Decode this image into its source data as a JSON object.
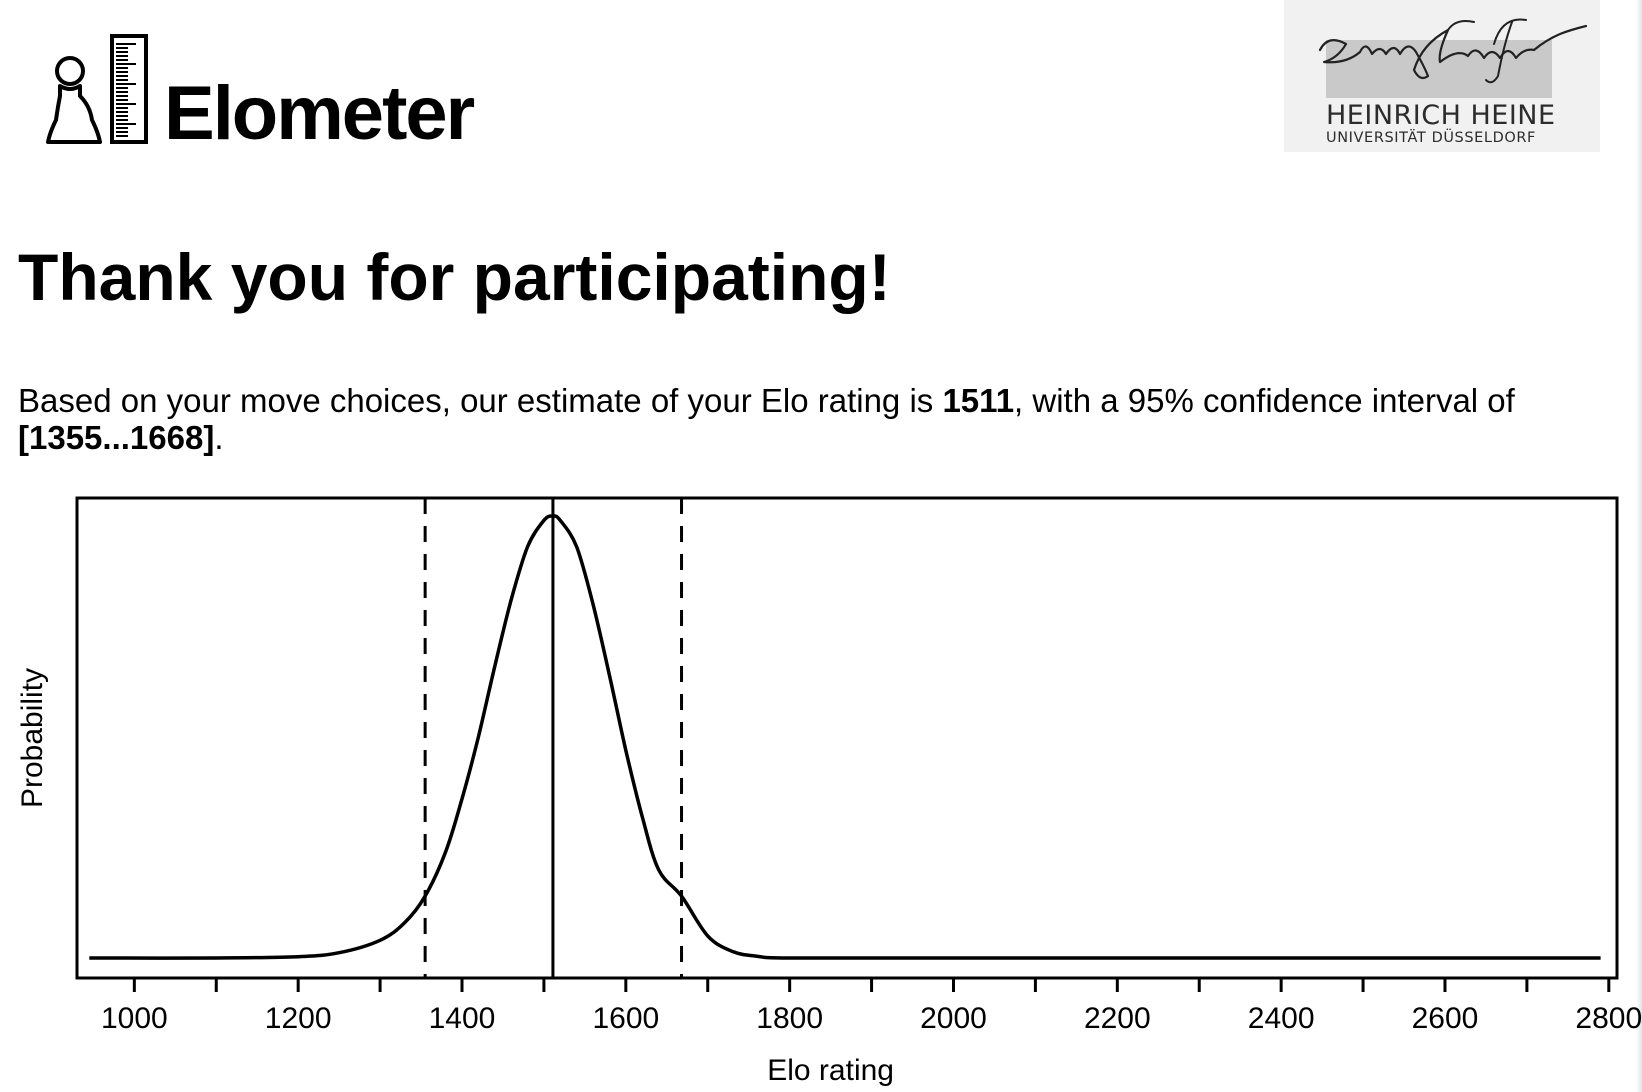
{
  "header": {
    "app_name": "Elometer",
    "university_line1": "HEINRICH HEINE",
    "university_line2": "UNIVERSITÄT DÜSSELDORF",
    "university_signature": "Heinrich Heine"
  },
  "main": {
    "heading": "Thank you for participating!",
    "result": {
      "prefix": "Based on your move choices, our estimate of your Elo rating is ",
      "rating": "1511",
      "middle": ", with a 95% confidence interval of ",
      "interval": "[1355...1668]",
      "suffix": "."
    }
  },
  "chart_data": {
    "type": "line",
    "xlabel": "Elo rating",
    "ylabel": "Probability",
    "xlim": [
      930,
      2810
    ],
    "x_ticks_labeled": [
      1000,
      1200,
      1400,
      1600,
      1800,
      2000,
      2200,
      2400,
      2600,
      2800
    ],
    "x_ticks_minor": [
      1100,
      1300,
      1500,
      1700,
      1900,
      2100,
      2300,
      2500,
      2700
    ],
    "y_ticks_labeled": [],
    "grid": false,
    "legend": "none",
    "series": [
      {
        "style": "solid",
        "color": "#000000",
        "x": [
          945,
          1100,
          1200,
          1250,
          1300,
          1330,
          1355,
          1380,
          1400,
          1420,
          1440,
          1460,
          1480,
          1500,
          1511,
          1520,
          1540,
          1560,
          1580,
          1600,
          1620,
          1640,
          1668,
          1700,
          1730,
          1760,
          1800,
          2000,
          2400,
          2790
        ],
        "y": [
          0.0,
          0.0,
          0.003,
          0.012,
          0.04,
          0.08,
          0.14,
          0.24,
          0.36,
          0.5,
          0.66,
          0.81,
          0.93,
          0.99,
          1.0,
          0.99,
          0.93,
          0.8,
          0.64,
          0.47,
          0.32,
          0.2,
          0.14,
          0.05,
          0.015,
          0.004,
          0.0,
          0.0,
          0.0,
          0.0
        ]
      }
    ],
    "reference_lines": [
      {
        "x": 1511,
        "style": "solid"
      },
      {
        "x": 1355,
        "style": "dashed"
      },
      {
        "x": 1668,
        "style": "dashed"
      }
    ]
  }
}
